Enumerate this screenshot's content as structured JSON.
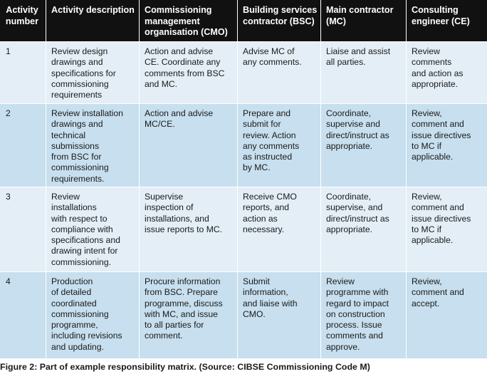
{
  "headers": [
    "Activity\nnumber",
    "Activity description",
    "Commissioning\nmanagement\norganisation (CMO)",
    "Building services\ncontractor (BSC)",
    "Main contractor\n(MC)",
    "Consulting\nengineer (CE)"
  ],
  "rows": [
    {
      "cells": [
        "1",
        "Review design\ndrawings and\nspecifications for\ncommissioning\nrequirements",
        "Action and advise\nCE. Coordinate any\ncomments from BSC\nand MC.",
        "Advise MC of\nany comments.",
        "Liaise and assist\nall parties.",
        "Review\ncomments\nand action as\nappropriate."
      ]
    },
    {
      "cells": [
        "2",
        "Review installation\ndrawings and\ntechnical\nsubmissions\nfrom BSC for\ncommissioning\nrequirements.",
        "Action and advise\nMC/CE.",
        "Prepare and\nsubmit for\nreview. Action\nany comments\nas instructed\nby MC.",
        "Coordinate,\nsupervise and\ndirect/instruct as\nappropriate.",
        "Review,\ncomment and\nissue directives\nto MC if\napplicable."
      ]
    },
    {
      "cells": [
        "3",
        "Review\ninstallations\nwith respect to\ncompliance with\nspecifications and\ndrawing intent for\ncommissioning.",
        "Supervise\ninspection of\ninstallations, and\nissue reports to MC.",
        "Receive CMO\nreports, and\naction as\nnecessary.",
        "Coordinate,\nsupervise, and\ndirect/instruct as\nappropriate.",
        "Review,\ncomment and\nissue directives\nto MC if\napplicable."
      ]
    },
    {
      "cells": [
        "4",
        "Production\nof detailed\ncoordinated\ncommissioning\nprogramme,\nincluding revisions\nand updating.",
        "Procure information\nfrom BSC. Prepare\nprogramme, discuss\nwith MC, and issue\nto all parties for\ncomment.",
        "Submit\ninformation,\nand liaise with\nCMO.",
        "Review\nprogramme with\nregard to impact\non construction\nprocess. Issue\ncomments and\napprove.",
        "Review,\ncomment and\naccept."
      ]
    }
  ],
  "caption": "Figure 2: Part of example responsibility matrix. (Source: CIBSE Commissioning Code M)",
  "colors": {
    "header_bg": "#111111",
    "row_light": "#e3eef6",
    "row_blue": "#c7dfee"
  }
}
